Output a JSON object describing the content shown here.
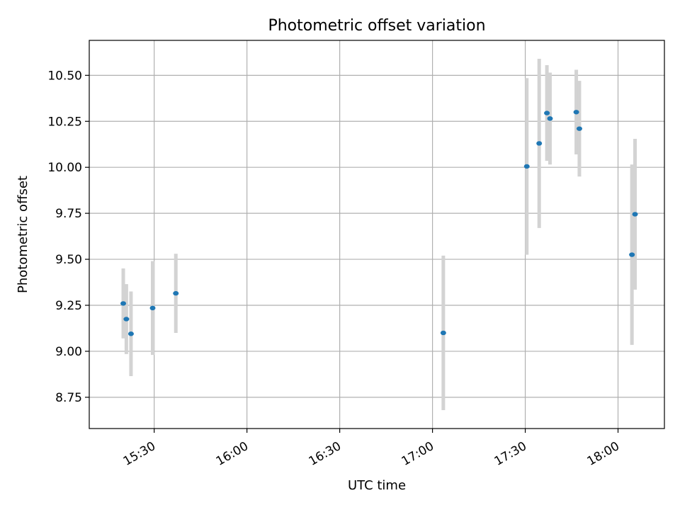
{
  "chart_data": {
    "type": "scatter",
    "title": "Photometric offset variation",
    "xlabel": "UTC time",
    "ylabel": "Photometric offset",
    "x_axis": {
      "kind": "time",
      "range": [
        "15:09",
        "18:15"
      ],
      "ticks": [
        "15:30",
        "16:00",
        "16:30",
        "17:00",
        "17:30",
        "18:00"
      ]
    },
    "y_axis": {
      "range": [
        8.58,
        10.69
      ],
      "ticks": [
        "8.75",
        "9.00",
        "9.25",
        "9.50",
        "9.75",
        "10.00",
        "10.25",
        "10.50"
      ]
    },
    "grid": true,
    "legend": "none",
    "colors": {
      "marker": "#1f77b4",
      "errorbar": "#d3d3d3",
      "grid": "#b0b0b0"
    },
    "points": [
      {
        "x": "15:20:00",
        "y": 9.26,
        "err": 0.19
      },
      {
        "x": "15:21:00",
        "y": 9.175,
        "err": 0.19
      },
      {
        "x": "15:22:30",
        "y": 9.095,
        "err": 0.23
      },
      {
        "x": "15:29:30",
        "y": 9.235,
        "err": 0.255
      },
      {
        "x": "15:37:00",
        "y": 9.315,
        "err": 0.215
      },
      {
        "x": "17:03:30",
        "y": 9.1,
        "err": 0.42
      },
      {
        "x": "17:30:30",
        "y": 10.005,
        "err": 0.48
      },
      {
        "x": "17:34:30",
        "y": 10.13,
        "err": 0.46
      },
      {
        "x": "17:37:00",
        "y": 10.295,
        "err": 0.26
      },
      {
        "x": "17:38:00",
        "y": 10.265,
        "err": 0.25
      },
      {
        "x": "17:46:30",
        "y": 10.3,
        "err": 0.23
      },
      {
        "x": "17:47:30",
        "y": 10.21,
        "err": 0.26
      },
      {
        "x": "18:04:30",
        "y": 9.525,
        "err": 0.49
      },
      {
        "x": "18:05:30",
        "y": 9.745,
        "err": 0.41
      }
    ]
  }
}
